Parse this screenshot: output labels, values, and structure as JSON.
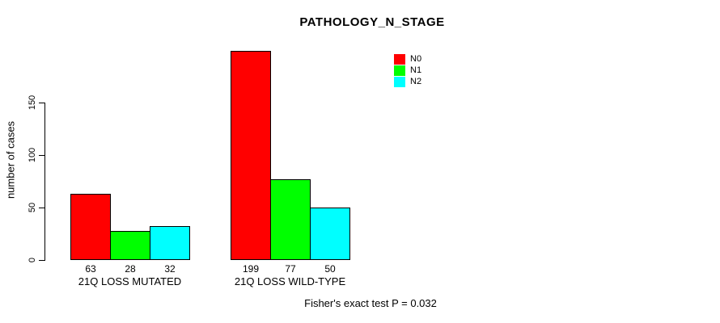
{
  "chart_data": {
    "type": "bar",
    "title": "PATHOLOGY_N_STAGE",
    "ylabel": "number of cases",
    "xlabel": "",
    "categories": [
      "21Q LOSS MUTATED",
      "21Q LOSS WILD-TYPE"
    ],
    "series": [
      {
        "name": "N0",
        "color": "#ff0000",
        "values": [
          63,
          199
        ]
      },
      {
        "name": "N1",
        "color": "#00ff00",
        "values": [
          28,
          77
        ]
      },
      {
        "name": "N2",
        "color": "#00ffff",
        "values": [
          32,
          50
        ]
      }
    ],
    "yticks": [
      0,
      50,
      100,
      150
    ],
    "ylim": [
      0,
      205
    ],
    "grid": false,
    "legend_position": "top-right",
    "bar_value_labels": true
  },
  "annotation": "Fisher's exact test P = 0.032",
  "colors": {
    "background": "#ffffff",
    "axis": "#000000",
    "text": "#000000",
    "bar_border": "#000000"
  }
}
